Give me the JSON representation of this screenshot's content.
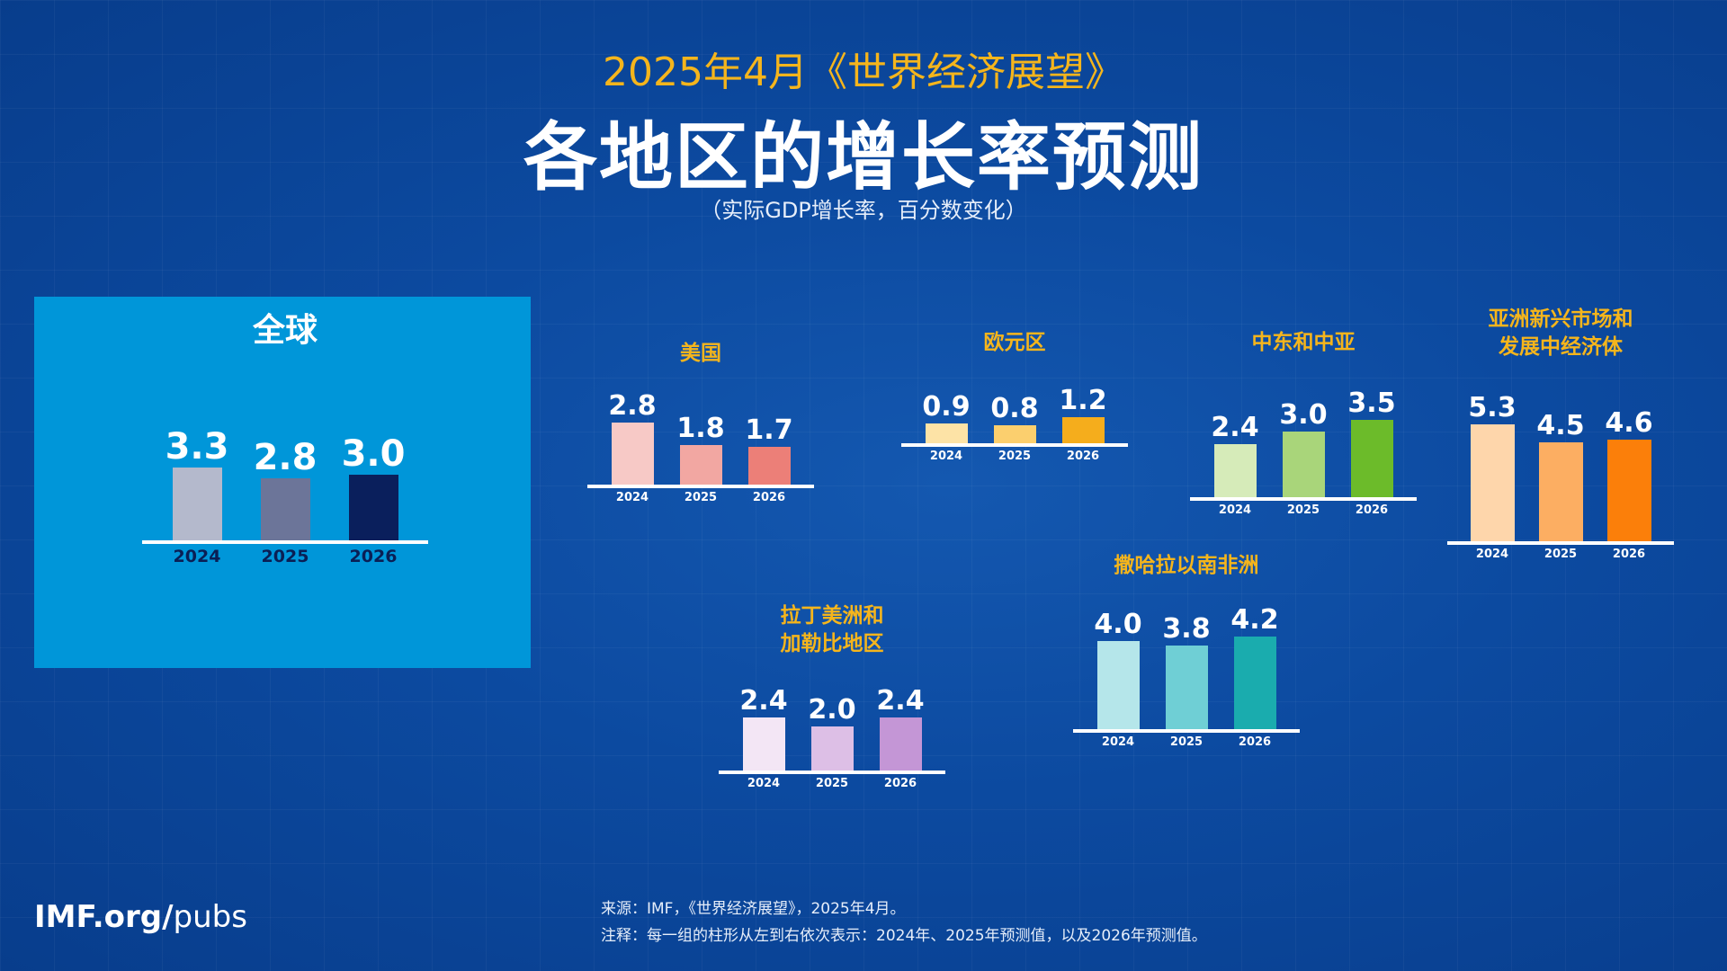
{
  "header": {
    "supertitle": "2025年4月《世界经济展望》",
    "title": "各地区的增长率预测",
    "subtitle": "（实际GDP增长率，百分数变化）"
  },
  "chart_data": [
    {
      "type": "bar",
      "title": "全球",
      "categories": [
        "2024",
        "2025",
        "2026"
      ],
      "values": [
        3.3,
        2.8,
        3.0
      ],
      "colors": [
        "#b4b9cc",
        "#6c7599",
        "#0a1f5c"
      ]
    },
    {
      "type": "bar",
      "title": "美国",
      "categories": [
        "2024",
        "2025",
        "2026"
      ],
      "values": [
        2.8,
        1.8,
        1.7
      ],
      "colors": [
        "#f7c9c6",
        "#f2a7a2",
        "#ec7f78"
      ]
    },
    {
      "type": "bar",
      "title": "欧元区",
      "categories": [
        "2024",
        "2025",
        "2026"
      ],
      "values": [
        0.9,
        0.8,
        1.2
      ],
      "colors": [
        "#fde3a6",
        "#fbcf6e",
        "#f5ad1c"
      ]
    },
    {
      "type": "bar",
      "title": "中东和中亚",
      "categories": [
        "2024",
        "2025",
        "2026"
      ],
      "values": [
        2.4,
        3.0,
        3.5
      ],
      "colors": [
        "#d6ebb9",
        "#a9d57a",
        "#6cbb2a"
      ]
    },
    {
      "type": "bar",
      "title": "亚洲新兴市场和\n发展中经济体",
      "categories": [
        "2024",
        "2025",
        "2026"
      ],
      "values": [
        5.3,
        4.5,
        4.6
      ],
      "colors": [
        "#fed6ab",
        "#fcae62",
        "#fb7f0a"
      ]
    },
    {
      "type": "bar",
      "title": "拉丁美洲和\n加勒比地区",
      "categories": [
        "2024",
        "2025",
        "2026"
      ],
      "values": [
        2.4,
        2.0,
        2.4
      ],
      "colors": [
        "#f3e6f5",
        "#ddbfe6",
        "#c496d6"
      ]
    },
    {
      "type": "bar",
      "title": "撒哈拉以南非洲",
      "categories": [
        "2024",
        "2025",
        "2026"
      ],
      "values": [
        4.0,
        3.8,
        4.2
      ],
      "colors": [
        "#b5e6ea",
        "#6fcfd5",
        "#1aacae"
      ]
    }
  ],
  "footer": {
    "logo_bold": "IMF.org/",
    "logo_light": "pubs",
    "source": "来源：IMF，《世界经济展望》，2025年4月。",
    "note": "注释：每一组的柱形从左到右依次表示：2024年、2025年预测值，以及2026年预测值。"
  }
}
